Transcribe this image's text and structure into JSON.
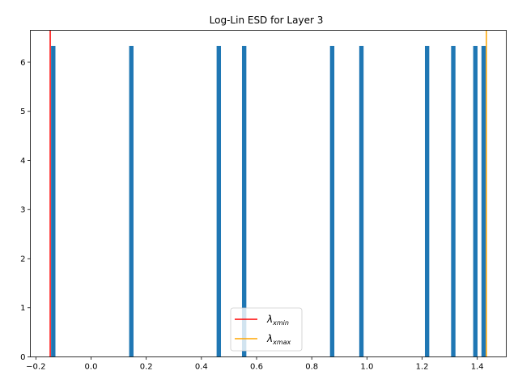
{
  "chart_data": {
    "type": "bar",
    "title": "Log-Lin ESD for Layer 3",
    "xlabel": "",
    "ylabel": "",
    "xlim": [
      -0.22,
      1.505
    ],
    "ylim": [
      0,
      6.65
    ],
    "x_ticks": [
      -0.2,
      0.0,
      0.2,
      0.4,
      0.6,
      0.8,
      1.0,
      1.2,
      1.4
    ],
    "x_tick_labels": [
      "−0.2",
      "0.0",
      "0.2",
      "0.4",
      "0.6",
      "0.8",
      "1.0",
      "1.2",
      "1.4"
    ],
    "y_ticks": [
      0,
      1,
      2,
      3,
      4,
      5,
      6
    ],
    "y_tick_labels": [
      "0",
      "1",
      "2",
      "3",
      "4",
      "5",
      "6"
    ],
    "bar_color": "#1f77b4",
    "bar_width": 0.0158,
    "bars": [
      {
        "x": -0.137,
        "value": 6.33
      },
      {
        "x": 0.146,
        "value": 6.33
      },
      {
        "x": 0.463,
        "value": 6.33
      },
      {
        "x": 0.555,
        "value": 6.33
      },
      {
        "x": 0.874,
        "value": 6.33
      },
      {
        "x": 0.98,
        "value": 6.33
      },
      {
        "x": 1.218,
        "value": 6.33
      },
      {
        "x": 1.313,
        "value": 6.33
      },
      {
        "x": 1.393,
        "value": 6.33
      },
      {
        "x": 1.423,
        "value": 6.33
      }
    ],
    "vlines": [
      {
        "name": "xmin",
        "x": -0.148,
        "color": "#ff0000"
      },
      {
        "name": "xmax",
        "x": 1.433,
        "color": "#ffa500"
      }
    ],
    "legend": {
      "position": "lower-center",
      "entries": [
        {
          "label_main": "λ",
          "label_sub": "xmin",
          "color": "#ff0000"
        },
        {
          "label_main": "λ",
          "label_sub": "xmax",
          "color": "#ffa500"
        }
      ]
    },
    "grid": false
  }
}
